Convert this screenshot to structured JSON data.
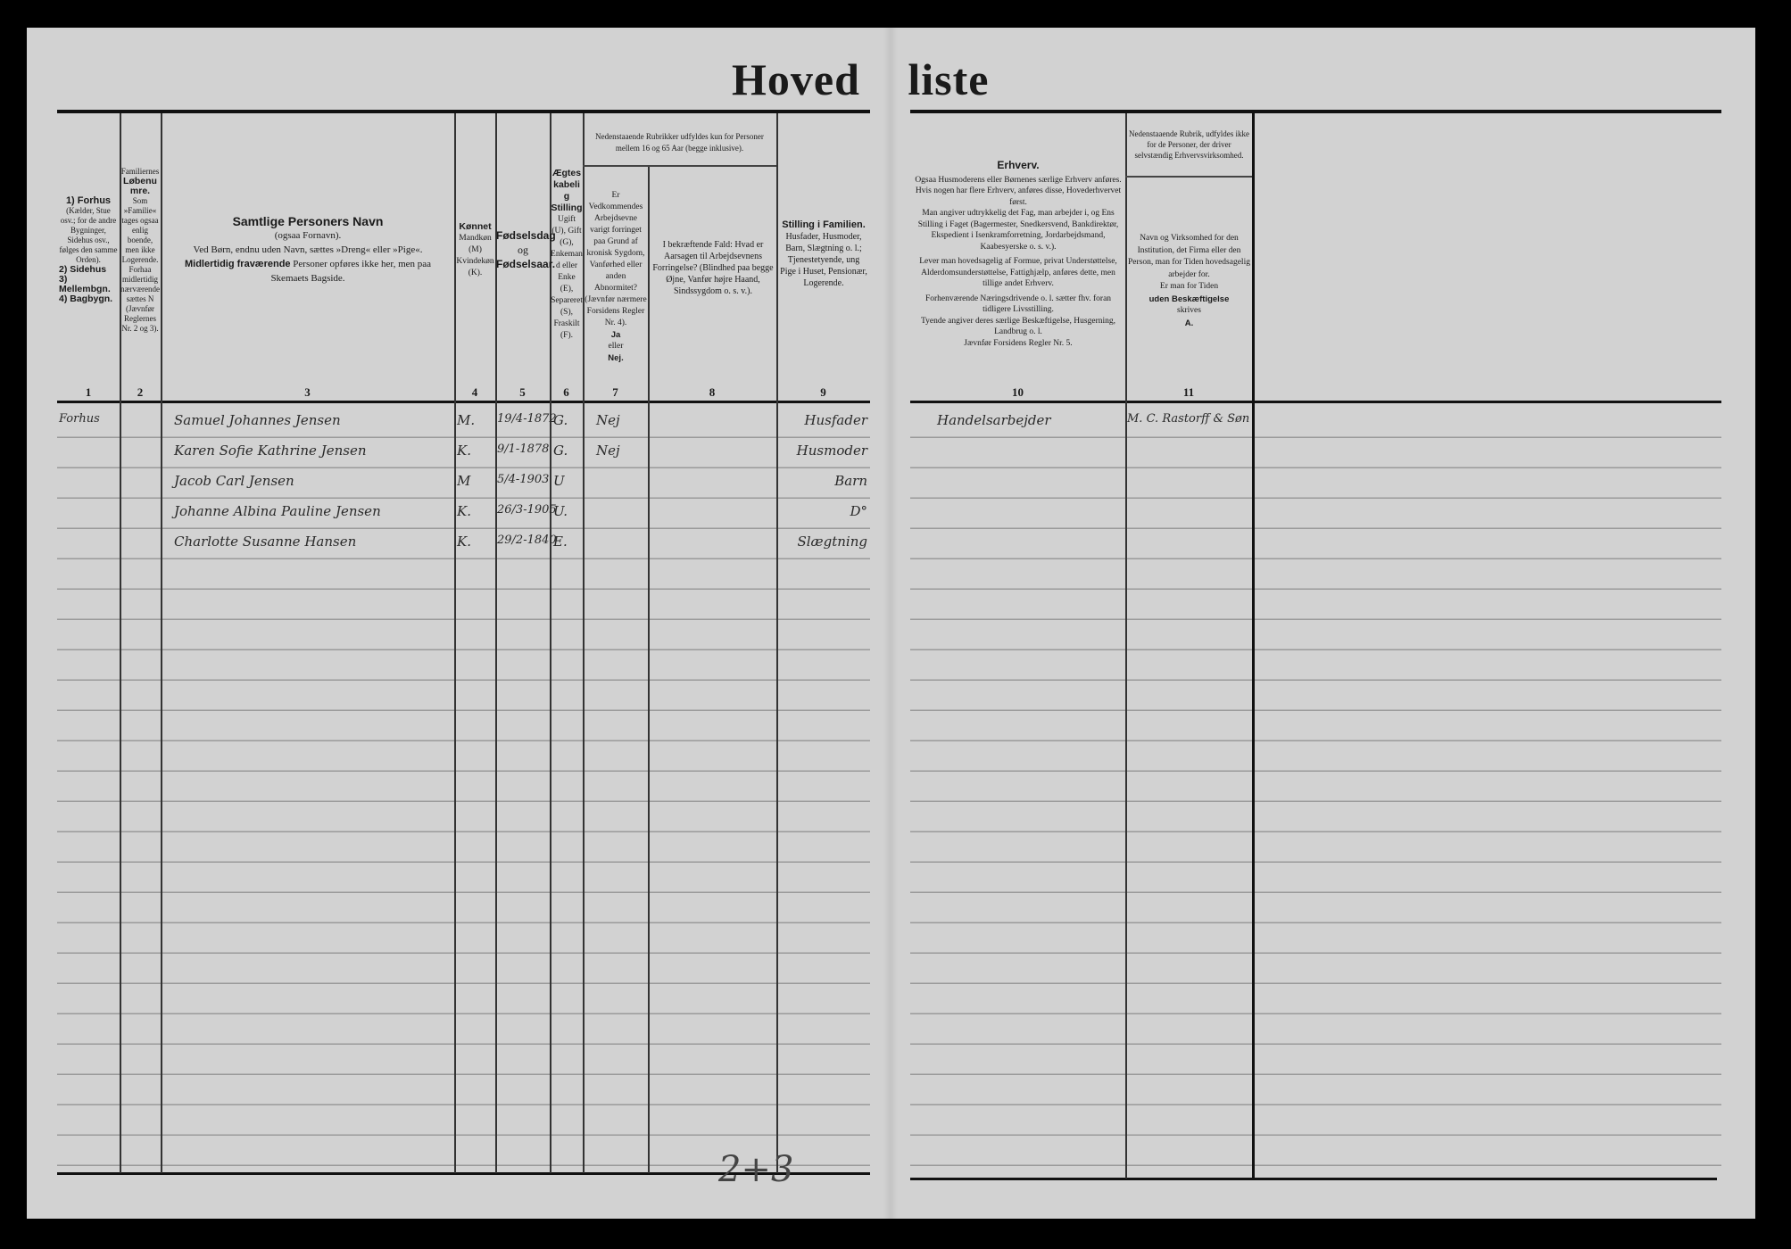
{
  "title": "Hoved liste",
  "headers": {
    "c1": {
      "items": [
        "1) Forhus",
        "2) Sidehus",
        "3) Mellembgn.",
        "4) Bagbygn."
      ],
      "note": "(Kælder, Stue osv.; for de andre Bygninger, Sidehus osv., følges den samme Orden)."
    },
    "c2": {
      "pre": "Familiernes",
      "title": "Løbenumre.",
      "note": "Som »Familie« tages ogsaa enlig boende, men ikke Logerende. Forhaa midlertidig nærværende sættes N (Jævnfør Reglernes Nr. 2 og 3)."
    },
    "c3": {
      "title": "Samtlige Personers Navn",
      "l1": "(ogsaa Fornavn).",
      "l2": "Ved Børn, endnu uden Navn, sættes »Dreng« eller »Pige«.",
      "l3b": "Midlertidig fraværende",
      "l3": "Personer opføres ikke her, men paa Skemaets Bagside."
    },
    "c4": {
      "title": "Kønnet",
      "note": "Mandkøn (M) Kvindekøn (K)."
    },
    "c5": {
      "title": "Fødselsdag",
      "mid": "og",
      "title2": "Fødselsaar."
    },
    "c6": {
      "title": "Ægteskabelig Stilling",
      "note": "Ugift (U), Gift (G), Enkemand eller Enke (E), Separeret (S), Fraskilt (F)."
    },
    "g78": "Nedenstaaende Rubrikker udfyldes kun for Personer mellem 16 og 65 Aar (begge inklusive).",
    "c7": {
      "note": "Er Vedkommendes Arbejdsevne varigt forringet paa Grund af kronisk Sygdom, Vanførhed eller anden Abnormitet? (Jævnfør nærmere Forsidens Regler Nr. 4).",
      "ja": "Ja",
      "eller": "eller",
      "nej": "Nej."
    },
    "c8": {
      "note": "I bekræftende Fald: Hvad er Aarsagen til Arbejdsevnens Forringelse? (Blindhed paa begge Øjne, Vanfør højre Haand, Sindssygdom o. s. v.)."
    },
    "c9": {
      "title": "Stilling i Familien.",
      "note": "Husfader, Husmoder, Barn, Slægtning o. l.; Tjenestetyende, ung Pige i Huset, Pensionær, Logerende."
    },
    "c10": {
      "title": "Erhverv.",
      "p1": "Ogsaa Husmoderens eller Børnenes særlige Erhverv anføres.",
      "p2": "Hvis nogen har flere Erhverv, anføres disse, Hovederhvervet først.",
      "p3": "Man angiver udtrykkelig det Fag, man arbejder i, og Ens Stilling i Faget (Bagermester, Snedkersvend, Bankdirektør, Ekspedient i Isenkramforretning, Jordarbejdsmand, Kaabesyerske o. s. v.).",
      "p4": "Lever man hovedsagelig af Formue, privat Understøttelse, Alderdomsunderstøttelse, Fattighjælp, anføres dette, men tillige andet Erhverv.",
      "p5": "Forhenværende Næringsdrivende o. l. sætter fhv. foran tidligere Livsstilling.",
      "p6": "Tyende angiver deres særlige Beskæftigelse, Husgerning, Landbrug o. l.",
      "p7": "Jævnfør Forsidens Regler Nr. 5."
    },
    "g11": "Nedenstaaende Rubrik, udfyldes ikke for de Personer, der driver selvstændig Erhvervsvirksomhed.",
    "c11": {
      "p1": "Navn og Virksomhed for den Institution, det Firma eller den Person, man for Tiden hovedsagelig arbejder for.",
      "p2": "Er man for Tiden",
      "b": "uden Beskæftigelse",
      "p3": "skrives",
      "a": "A."
    }
  },
  "col_numbers": [
    "1",
    "2",
    "3",
    "4",
    "5",
    "6",
    "7",
    "8",
    "9",
    "10",
    "11"
  ],
  "rows": [
    {
      "building": "Forhus",
      "name": "Samuel Johannes Jensen",
      "sex": "M.",
      "born": "19/4-1872",
      "civil": "G.",
      "disabled": "Nej",
      "role": "Husfader",
      "occupation": "Handelsarbejder",
      "employer": "M. C. Rastorff & Søn"
    },
    {
      "building": "",
      "name": "Karen Sofie Kathrine Jensen",
      "sex": "K.",
      "born": "9/1-1878",
      "civil": "G.",
      "disabled": "Nej",
      "role": "Husmoder",
      "occupation": "",
      "employer": ""
    },
    {
      "building": "",
      "name": "Jacob Carl Jensen",
      "sex": "M",
      "born": "5/4-1903",
      "civil": "U",
      "disabled": "",
      "role": "Barn",
      "occupation": "",
      "employer": ""
    },
    {
      "building": "",
      "name": "Johanne Albina Pauline Jensen",
      "sex": "K.",
      "born": "26/3-1905",
      "civil": "U.",
      "disabled": "",
      "role": "D°",
      "occupation": "",
      "employer": ""
    },
    {
      "building": "",
      "name": "Charlotte Susanne Hansen",
      "sex": "K.",
      "born": "29/2-1840",
      "civil": "E.",
      "disabled": "",
      "role": "Slægtning",
      "occupation": "",
      "employer": ""
    }
  ],
  "page_number": "2+3"
}
